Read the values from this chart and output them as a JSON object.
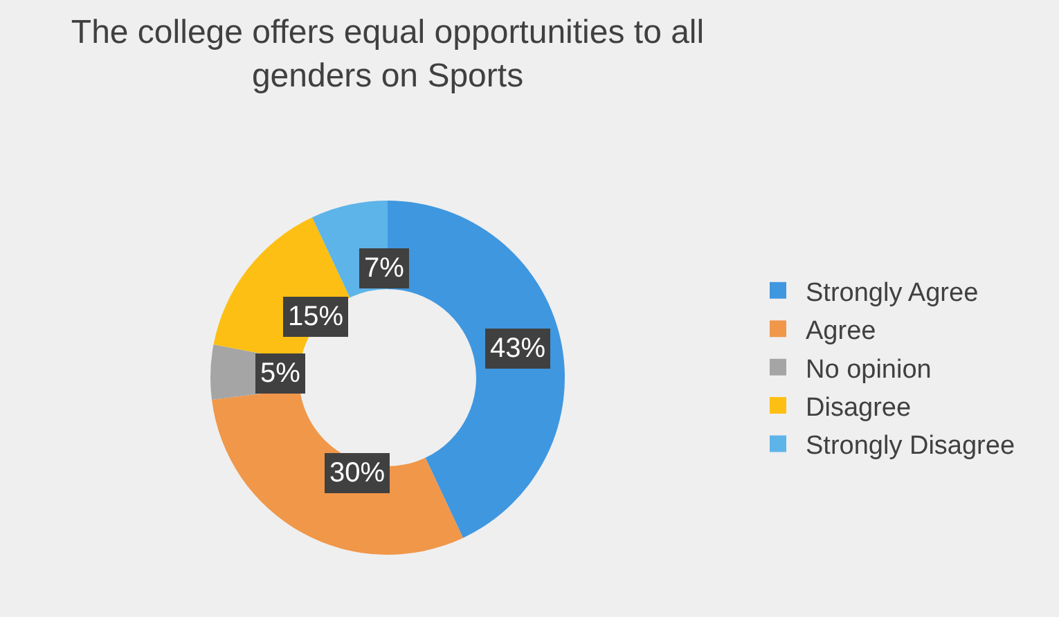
{
  "chart_data": {
    "type": "donut",
    "title": "The college offers equal opportunities to all genders on Sports",
    "categories": [
      "Strongly Agree",
      "Agree",
      "No opinion",
      "Disagree",
      "Strongly Disagree"
    ],
    "values": [
      43,
      30,
      5,
      15,
      7
    ],
    "value_labels": [
      "43%",
      "30%",
      "5%",
      "15%",
      "7%"
    ],
    "colors": [
      "#3f97e0",
      "#f0974a",
      "#a5a5a5",
      "#fdbf13",
      "#5db4e9"
    ],
    "legend": "right"
  }
}
